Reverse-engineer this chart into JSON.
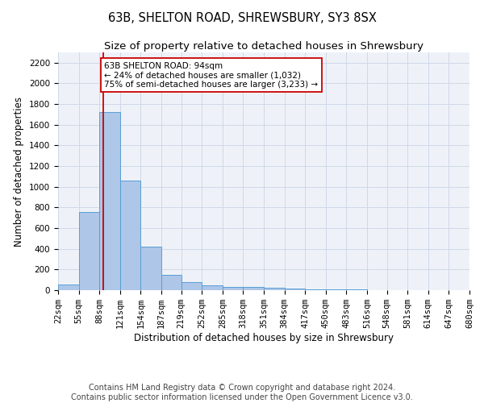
{
  "title": "63B, SHELTON ROAD, SHREWSBURY, SY3 8SX",
  "subtitle": "Size of property relative to detached houses in Shrewsbury",
  "xlabel": "Distribution of detached houses by size in Shrewsbury",
  "ylabel": "Number of detached properties",
  "footer_line1": "Contains HM Land Registry data © Crown copyright and database right 2024.",
  "footer_line2": "Contains public sector information licensed under the Open Government Licence v3.0.",
  "bin_edges": [
    22,
    55,
    88,
    121,
    154,
    187,
    219,
    252,
    285,
    318,
    351,
    384,
    417,
    450,
    483,
    516,
    548,
    581,
    614,
    647,
    680
  ],
  "bar_heights": [
    55,
    760,
    1720,
    1060,
    420,
    145,
    80,
    45,
    35,
    30,
    20,
    15,
    10,
    5,
    5,
    3,
    3,
    2,
    1,
    1
  ],
  "bar_color": "#aec6e8",
  "bar_edge_color": "#5a9fd4",
  "property_size": 94,
  "red_line_color": "#cc0000",
  "annotation_text": "63B SHELTON ROAD: 94sqm\n← 24% of detached houses are smaller (1,032)\n75% of semi-detached houses are larger (3,233) →",
  "annotation_box_color": "#ffffff",
  "annotation_box_edge": "#cc0000",
  "ylim": [
    0,
    2300
  ],
  "yticks": [
    0,
    200,
    400,
    600,
    800,
    1000,
    1200,
    1400,
    1600,
    1800,
    2000,
    2200
  ],
  "grid_color": "#d0d8e8",
  "bg_color": "#eef2f8",
  "title_fontsize": 10.5,
  "subtitle_fontsize": 9.5,
  "axis_label_fontsize": 8.5,
  "tick_fontsize": 7.5,
  "footer_fontsize": 7
}
